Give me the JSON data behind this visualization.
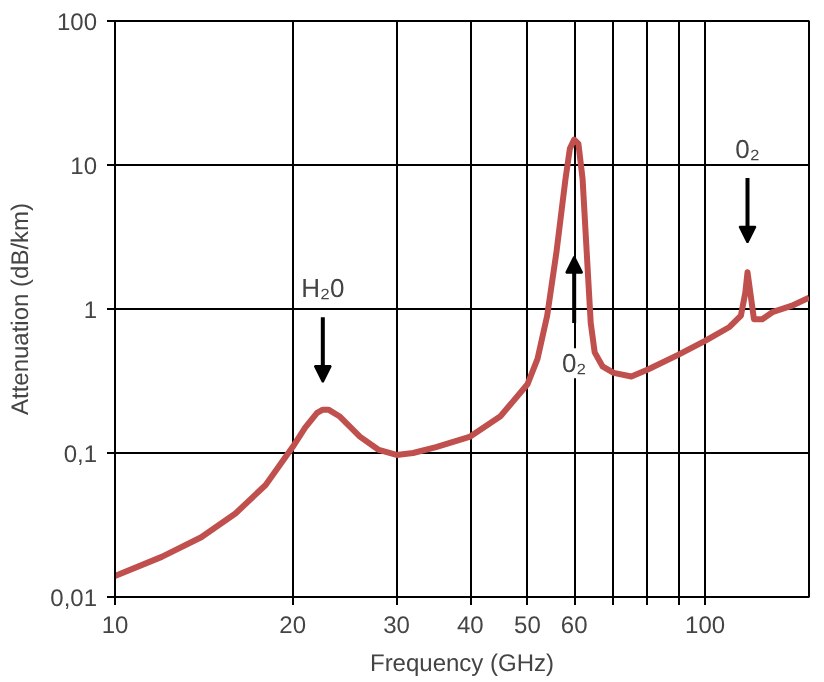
{
  "chart_data": {
    "type": "line",
    "xlabel": "Frequency (GHz)",
    "ylabel": "Attenuation (dB/km)",
    "log": "xy",
    "grid": true,
    "xlim": [
      10,
      150
    ],
    "ylim": [
      0.01,
      100
    ],
    "xticks": [
      10,
      20,
      30,
      40,
      50,
      60,
      {
        "value": 70,
        "label": null
      },
      {
        "value": 80,
        "label": null
      },
      {
        "value": 90,
        "label": null
      },
      100
    ],
    "yticks": [
      {
        "value": 0.01,
        "label": "0,01"
      },
      {
        "value": 0.1,
        "label": "0,1"
      },
      1,
      10,
      100
    ],
    "series": [
      {
        "color": "#c0504d",
        "x": [
          10,
          12,
          14,
          16,
          18,
          20,
          21,
          22,
          22.5,
          23,
          24,
          26,
          28,
          30,
          32,
          35,
          40,
          45,
          50,
          52,
          54,
          56,
          58,
          59,
          60,
          61,
          62,
          63,
          64,
          65,
          67,
          70,
          75,
          80,
          90,
          100,
          110,
          115,
          117,
          118,
          119,
          121,
          125,
          130,
          140,
          150
        ],
        "values": [
          0.014,
          0.019,
          0.026,
          0.038,
          0.06,
          0.11,
          0.15,
          0.19,
          0.2,
          0.2,
          0.18,
          0.13,
          0.105,
          0.097,
          0.1,
          0.11,
          0.13,
          0.18,
          0.3,
          0.45,
          0.9,
          2.5,
          8,
          13,
          15,
          14,
          8,
          2.5,
          0.8,
          0.5,
          0.4,
          0.36,
          0.34,
          0.38,
          0.48,
          0.6,
          0.75,
          0.9,
          1.3,
          1.8,
          1.4,
          0.85,
          0.85,
          0.95,
          1.05,
          1.2
        ]
      }
    ],
    "annotations": [
      {
        "text": "H₂0",
        "x": 22.5,
        "y": 1.4
      },
      {
        "text": "0₂",
        "x": 60,
        "y": 0.42
      },
      {
        "text": "0₂",
        "x": 118,
        "y": 13
      }
    ]
  }
}
